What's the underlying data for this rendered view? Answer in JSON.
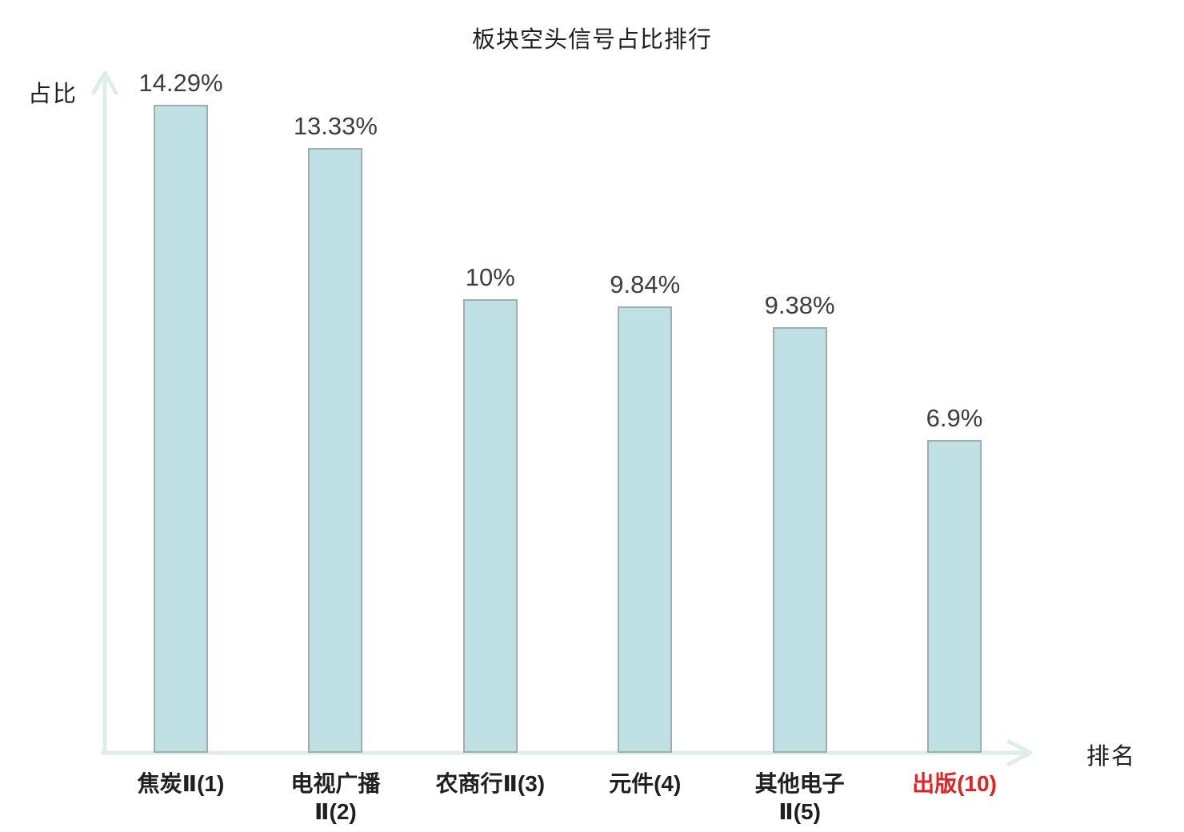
{
  "title": "板块空头信号占比排行",
  "chart_data": {
    "type": "bar",
    "title": "板块空头信号占比排行",
    "xlabel": "排名",
    "ylabel": "占比",
    "categories": [
      "焦炭Ⅱ(1)",
      "电视广播Ⅱ(2)",
      "农商行Ⅱ(3)",
      "元件(4)",
      "其他电子Ⅱ(5)",
      "出版(10)"
    ],
    "category_lines": [
      [
        "焦炭Ⅱ(1)"
      ],
      [
        "电视广播",
        "Ⅱ(2)"
      ],
      [
        "农商行Ⅱ(3)"
      ],
      [
        "元件(4)"
      ],
      [
        "其他电子",
        "Ⅱ(5)"
      ],
      [
        "出版(10)"
      ]
    ],
    "values": [
      14.29,
      13.33,
      10,
      9.84,
      9.38,
      6.9
    ],
    "value_labels": [
      "14.29%",
      "13.33%",
      "10%",
      "9.84%",
      "9.38%",
      "6.9%"
    ],
    "highlight_index": 5,
    "ylim": [
      0,
      15
    ],
    "grid": false,
    "legend": null,
    "colors": {
      "bar_fill": "#bfe1e4",
      "bar_border": "#a2abae",
      "axis": "#ddeeea",
      "value_label": "#3d3d3d",
      "category_label": "#1f1f1f",
      "highlight_label": "#e02222"
    }
  }
}
